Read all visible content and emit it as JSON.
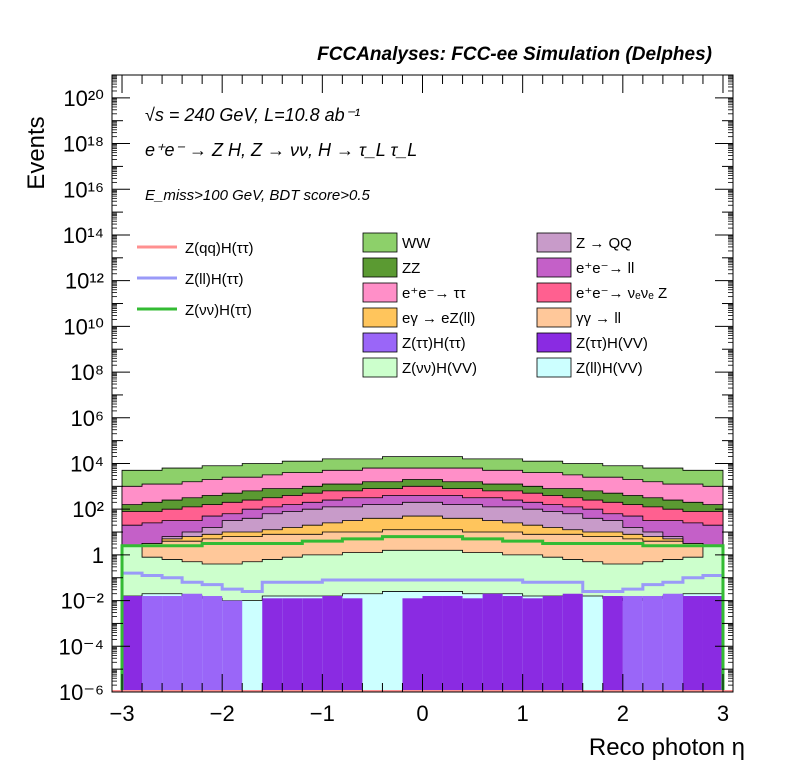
{
  "header": "FCCAnalyses: FCC-ee Simulation (Delphes)",
  "info": {
    "energy": "√s = 240 GeV, L=10.8 ab⁻¹",
    "process": "e⁺e⁻ → Z H, Z → νν, H → τ_L τ_L",
    "selection": "E_miss>100 GeV, BDT score>0.5"
  },
  "colors": {
    "WW": "#8dd06a",
    "ZZ": "#5b9a32",
    "Z_QQ": "#c89bc9",
    "ee_ll": "#c460c8",
    "ee_tautau": "#ff8fc8",
    "ee_nunuZ": "#ff6090",
    "egamma_eZll": "#ffc55c",
    "gammagamma_ll": "#ffc89a",
    "Ztautau_Htautau": "#9a66f8",
    "Ztautau_HVV": "#8a2be2",
    "Znunu_HVV": "#ccffcc",
    "Zll_HVV": "#ccffff",
    "line_Zqq_Htautau": "#ff9090",
    "line_Zll_Htautau": "#9a9af8",
    "line_Znunu_Htautau": "#33bb33"
  },
  "chart_data": {
    "type": "histogram",
    "title": "FCCAnalyses: FCC-ee Simulation (Delphes)",
    "xlabel": "Reco photon η",
    "ylabel": "Events",
    "xlim": [
      -3.1,
      3.1
    ],
    "ylog": true,
    "ylim_exp": [
      -6,
      21
    ],
    "x_edges": [
      -3.0,
      -2.8,
      -2.6,
      -2.4,
      -2.2,
      -2.0,
      -1.8,
      -1.6,
      -1.4,
      -1.2,
      -1.0,
      -0.8,
      -0.6,
      -0.4,
      -0.2,
      0.0,
      0.2,
      0.4,
      0.6,
      0.8,
      1.0,
      1.2,
      1.4,
      1.6,
      1.8,
      2.0,
      2.2,
      2.4,
      2.6,
      2.8,
      3.0
    ],
    "x_ticks": [
      -3,
      -2,
      -1,
      0,
      1,
      2,
      3
    ],
    "x_tick_labels": [
      "−3",
      "−2",
      "−1",
      "0",
      "1",
      "2",
      "3"
    ],
    "y_ticks": [
      {
        "exp": -6,
        "label": "10⁻⁶"
      },
      {
        "exp": -4,
        "label": "10⁻⁴"
      },
      {
        "exp": -2,
        "label": "10⁻²"
      },
      {
        "exp": 0,
        "label": "1"
      },
      {
        "exp": 2,
        "label": "10²"
      },
      {
        "exp": 4,
        "label": "10⁴"
      },
      {
        "exp": 6,
        "label": "10⁶"
      },
      {
        "exp": 8,
        "label": "10⁸"
      },
      {
        "exp": 10,
        "label": "10¹⁰"
      },
      {
        "exp": 12,
        "label": "10¹²"
      },
      {
        "exp": 14,
        "label": "10¹⁴"
      },
      {
        "exp": 16,
        "label": "10¹⁶"
      },
      {
        "exp": 18,
        "label": "10¹⁸"
      },
      {
        "exp": 20,
        "label": "10²⁰"
      }
    ],
    "stack_edges_log10": [
      [
        -1.8,
        -1.7,
        -1.7,
        -1.8,
        -1.9,
        -2.0,
        -2.0,
        -1.8,
        -1.8,
        -1.8,
        -1.8,
        -1.7,
        -1.7,
        -1.6,
        -1.6,
        -1.6,
        -1.6,
        -1.7,
        -1.7,
        -1.7,
        -1.8,
        -1.8,
        -1.8,
        -1.8,
        -1.9,
        -2.0,
        -1.9,
        -1.8,
        -1.7,
        -1.7
      ],
      [
        0.4,
        -0.1,
        -0.2,
        -0.3,
        -0.4,
        -0.4,
        -0.3,
        -0.2,
        -0.1,
        0.0,
        0.0,
        0.1,
        0.1,
        0.2,
        0.2,
        0.2,
        0.2,
        0.1,
        0.1,
        0.0,
        0.0,
        -0.1,
        -0.2,
        -0.3,
        -0.4,
        -0.4,
        -0.3,
        -0.2,
        -0.1,
        0.4
      ],
      [
        0.4,
        0.5,
        0.6,
        0.6,
        0.7,
        0.8,
        0.8,
        0.9,
        0.9,
        0.9,
        1.0,
        1.0,
        1.0,
        1.1,
        1.1,
        1.1,
        1.1,
        1.0,
        1.0,
        1.0,
        0.9,
        0.9,
        0.9,
        0.8,
        0.8,
        0.7,
        0.6,
        0.6,
        0.5,
        0.4
      ],
      [
        0.4,
        0.5,
        0.7,
        0.8,
        0.9,
        1.0,
        1.0,
        1.1,
        1.2,
        1.3,
        1.4,
        1.5,
        1.6,
        1.6,
        1.7,
        1.7,
        1.6,
        1.6,
        1.5,
        1.4,
        1.3,
        1.2,
        1.1,
        1.0,
        1.0,
        0.9,
        0.8,
        0.7,
        0.5,
        0.4
      ],
      [
        0.4,
        0.5,
        0.8,
        1.0,
        1.2,
        1.5,
        1.6,
        1.8,
        1.9,
        2.0,
        2.1,
        2.1,
        2.2,
        2.2,
        2.3,
        2.3,
        2.2,
        2.2,
        2.1,
        2.1,
        2.0,
        1.9,
        1.8,
        1.6,
        1.5,
        1.2,
        1.0,
        0.8,
        0.5,
        0.4
      ],
      [
        1.3,
        1.4,
        1.5,
        1.5,
        1.7,
        1.8,
        2.0,
        2.1,
        2.2,
        2.3,
        2.4,
        2.5,
        2.5,
        2.6,
        2.6,
        2.6,
        2.6,
        2.5,
        2.5,
        2.4,
        2.3,
        2.2,
        2.1,
        2.0,
        1.8,
        1.7,
        1.5,
        1.5,
        1.4,
        1.3
      ],
      [
        1.9,
        1.9,
        2.0,
        2.1,
        2.2,
        2.3,
        2.4,
        2.5,
        2.6,
        2.7,
        2.8,
        2.8,
        2.9,
        2.9,
        3.0,
        3.0,
        2.9,
        2.9,
        2.8,
        2.8,
        2.7,
        2.6,
        2.5,
        2.4,
        2.3,
        2.2,
        2.1,
        2.0,
        1.9,
        1.9
      ],
      [
        2.2,
        2.3,
        2.4,
        2.5,
        2.6,
        2.7,
        2.8,
        2.9,
        2.9,
        3.0,
        3.1,
        3.1,
        3.2,
        3.2,
        3.3,
        3.3,
        3.2,
        3.2,
        3.1,
        3.1,
        3.0,
        2.9,
        2.9,
        2.8,
        2.7,
        2.6,
        2.5,
        2.4,
        2.3,
        2.2
      ],
      [
        3.0,
        3.1,
        3.1,
        3.2,
        3.3,
        3.4,
        3.4,
        3.5,
        3.6,
        3.6,
        3.7,
        3.7,
        3.8,
        3.8,
        3.8,
        3.8,
        3.8,
        3.8,
        3.7,
        3.7,
        3.6,
        3.6,
        3.5,
        3.4,
        3.4,
        3.3,
        3.2,
        3.1,
        3.1,
        3.0
      ],
      [
        3.7,
        3.7,
        3.8,
        3.8,
        3.9,
        3.9,
        4.0,
        4.0,
        4.1,
        4.1,
        4.2,
        4.2,
        4.2,
        4.3,
        4.3,
        4.3,
        4.3,
        4.2,
        4.2,
        4.2,
        4.1,
        4.1,
        4.0,
        4.0,
        3.9,
        3.9,
        3.8,
        3.8,
        3.7,
        3.7
      ]
    ],
    "stack_colors": [
      "Zll_HVV",
      "Znunu_HVV",
      "gammagamma_ll",
      "egamma_eZll",
      "Z_QQ",
      "ee_ll",
      "ee_nunuZ",
      "ZZ",
      "ee_tautau",
      "WW"
    ],
    "purple_bars": {
      "Ztautau_Htautau_log10": [
        null,
        -1.8,
        -1.8,
        -1.7,
        -1.8,
        -2.0,
        null,
        null,
        null,
        null,
        null,
        null,
        null,
        null,
        null,
        null,
        null,
        null,
        null,
        null,
        null,
        null,
        null,
        null,
        null,
        -1.8,
        -1.8,
        -1.7,
        -1.8,
        -1.8
      ],
      "Ztautau_HVV_log10": [
        -1.8,
        null,
        null,
        null,
        null,
        null,
        null,
        -1.9,
        -1.9,
        -1.9,
        -1.8,
        -1.9,
        null,
        null,
        -1.9,
        -1.8,
        -1.8,
        -1.9,
        -1.7,
        -1.8,
        -1.9,
        -1.8,
        -1.7,
        null,
        -1.8,
        null,
        null,
        null,
        -1.8,
        -1.8
      ]
    },
    "line_Zll_Htautau_log10": [
      -0.8,
      -0.9,
      -1.0,
      -1.2,
      -1.3,
      -1.5,
      -1.6,
      -1.2,
      -1.2,
      -1.2,
      -1.1,
      -1.1,
      -1.1,
      -1.1,
      -1.1,
      -1.1,
      -1.1,
      -1.1,
      -1.1,
      -1.1,
      -1.2,
      -1.2,
      -1.2,
      -1.6,
      -1.6,
      -1.5,
      -1.3,
      -1.2,
      -1.0,
      -0.9
    ],
    "line_Znunu_Htautau_log10": [
      0.4,
      0.4,
      0.4,
      0.4,
      0.5,
      0.5,
      0.5,
      0.5,
      0.5,
      0.6,
      0.6,
      0.7,
      0.7,
      0.8,
      0.8,
      0.8,
      0.8,
      0.7,
      0.7,
      0.6,
      0.6,
      0.5,
      0.5,
      0.5,
      0.5,
      0.5,
      0.4,
      0.4,
      0.4,
      0.4
    ],
    "line_Zqq_Htautau_log10": -6,
    "legend": [
      {
        "label": "Z(qq)H(ττ)",
        "kind": "line",
        "color": "line_Zqq_Htautau"
      },
      {
        "label": "Z(ll)H(ττ)",
        "kind": "line",
        "color": "line_Zll_Htautau"
      },
      {
        "label": "Z(νν)H(ττ)",
        "kind": "line",
        "color": "line_Znunu_Htautau"
      },
      {
        "label": "WW",
        "kind": "fill",
        "color": "WW"
      },
      {
        "label": "ZZ",
        "kind": "fill",
        "color": "ZZ"
      },
      {
        "label": "e⁺e⁻→ ττ",
        "kind": "fill",
        "color": "ee_tautau"
      },
      {
        "label": "eγ → eZ(ll)",
        "kind": "fill",
        "color": "egamma_eZll"
      },
      {
        "label": "Z(ττ)H(ττ)",
        "kind": "fill",
        "color": "Ztautau_Htautau"
      },
      {
        "label": "Z(νν)H(VV)",
        "kind": "fill",
        "color": "Znunu_HVV"
      },
      {
        "label": "Z → QQ",
        "kind": "fill",
        "color": "Z_QQ"
      },
      {
        "label": "e⁺e⁻→ ll",
        "kind": "fill",
        "color": "ee_ll"
      },
      {
        "label": "e⁺e⁻→ νₑνₑ Z",
        "kind": "fill",
        "color": "ee_nunuZ"
      },
      {
        "label": "γγ → ll",
        "kind": "fill",
        "color": "gammagamma_ll"
      },
      {
        "label": "Z(ττ)H(VV)",
        "kind": "fill",
        "color": "Ztautau_HVV"
      },
      {
        "label": "Z(ll)H(VV)",
        "kind": "fill",
        "color": "Zll_HVV"
      }
    ]
  }
}
